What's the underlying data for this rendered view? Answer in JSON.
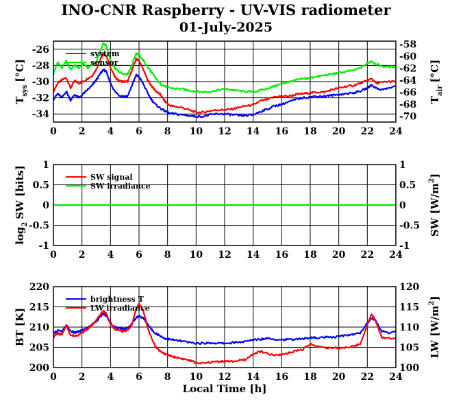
{
  "title": "INO-CNR Raspberry - UV-VIS radiometer",
  "subtitle": "01-July-2025",
  "chart_data": [
    {
      "type": "line",
      "panel": "temperatures",
      "xlim": [
        0,
        24
      ],
      "xticks": [
        "0",
        "2",
        "4",
        "6",
        "8",
        "10",
        "12",
        "14",
        "16",
        "18",
        "20",
        "22",
        "24"
      ],
      "ylabel_left_main": "T",
      "ylabel_left_sub": "sys",
      "ylabel_left_unit": "[°C]",
      "ylim_left": [
        -35,
        -25
      ],
      "yticks_left": [
        "-26",
        "-28",
        "-30",
        "-32",
        "-34"
      ],
      "ylabel_right_main": "T",
      "ylabel_right_sub": "air",
      "ylabel_right_unit": "[°C]",
      "ylim_right": [
        -71,
        -57.5
      ],
      "yticks_right": [
        "-58",
        "-60",
        "-62",
        "-64",
        "-66",
        "-68",
        "-70"
      ],
      "grid": true,
      "legend_position": "top-left",
      "series": [
        {
          "name": "system",
          "color": "#ff0000",
          "axis": "left",
          "x": [
            0,
            0.3,
            0.6,
            0.9,
            1.2,
            1.5,
            1.8,
            2.1,
            2.4,
            2.7,
            3.0,
            3.3,
            3.5,
            3.7,
            4.0,
            4.3,
            4.6,
            4.9,
            5.2,
            5.5,
            5.8,
            6.0,
            6.3,
            6.6,
            6.9,
            7.2,
            7.5,
            7.8,
            8.1,
            8.5,
            9,
            9.5,
            10,
            10.5,
            11,
            11.5,
            12,
            12.5,
            13,
            13.5,
            14,
            14.5,
            15,
            15.5,
            16,
            16.5,
            17,
            17.5,
            18,
            18.5,
            19,
            19.5,
            20,
            20.5,
            21,
            21.5,
            22,
            22.3,
            22.6,
            23,
            23.5,
            24
          ],
          "y": [
            -31.2,
            -30.2,
            -29.8,
            -29.5,
            -30.8,
            -29.9,
            -30.2,
            -30.0,
            -29.6,
            -29.3,
            -28.5,
            -27.2,
            -26.6,
            -26.8,
            -28.2,
            -29.4,
            -29.9,
            -30.0,
            -30.0,
            -28.6,
            -27.2,
            -27.4,
            -28.5,
            -29.8,
            -30.6,
            -31.2,
            -31.6,
            -32.4,
            -32.9,
            -33.1,
            -33.2,
            -33.5,
            -33.8,
            -33.8,
            -33.6,
            -33.5,
            -33.5,
            -33.4,
            -33.2,
            -33.0,
            -32.9,
            -32.4,
            -32.2,
            -31.9,
            -31.8,
            -31.8,
            -31.6,
            -31.5,
            -31.4,
            -31.3,
            -31.3,
            -31.0,
            -30.8,
            -30.6,
            -30.5,
            -30.2,
            -29.9,
            -29.6,
            -30.2,
            -30.1,
            -30.0,
            -30.0
          ]
        },
        {
          "name": "sensor",
          "color": "#00ee00",
          "axis": "right",
          "x": [
            0,
            0.3,
            0.6,
            0.9,
            1.2,
            1.5,
            1.8,
            2.1,
            2.4,
            2.7,
            3.0,
            3.3,
            3.5,
            3.7,
            4.0,
            4.3,
            4.6,
            4.9,
            5.2,
            5.5,
            5.8,
            6.0,
            6.3,
            6.6,
            6.9,
            7.2,
            7.5,
            7.8,
            8.1,
            8.5,
            9,
            9.5,
            10,
            10.5,
            11,
            11.5,
            12,
            12.5,
            13,
            13.5,
            14,
            14.5,
            15,
            15.5,
            16,
            16.5,
            17,
            17.5,
            18,
            18.5,
            19,
            19.5,
            20,
            20.5,
            21,
            21.5,
            22,
            22.3,
            22.6,
            23,
            23.5,
            24
          ],
          "y": [
            -63.0,
            -61.0,
            -62.0,
            -60.8,
            -62.2,
            -61.5,
            -62.0,
            -61.2,
            -62.0,
            -61.5,
            -61.0,
            -59.0,
            -57.9,
            -58.2,
            -60.8,
            -62.0,
            -62.6,
            -62.9,
            -63.0,
            -61.5,
            -59.5,
            -59.8,
            -60.7,
            -61.8,
            -62.8,
            -63.8,
            -64.6,
            -65.0,
            -65.3,
            -65.4,
            -65.5,
            -65.7,
            -65.9,
            -66.0,
            -65.9,
            -65.7,
            -65.5,
            -65.6,
            -65.8,
            -65.9,
            -66.0,
            -65.7,
            -65.4,
            -65.0,
            -64.6,
            -64.3,
            -64.0,
            -63.8,
            -63.6,
            -63.4,
            -63.2,
            -63.0,
            -62.8,
            -62.6,
            -62.4,
            -62.0,
            -61.2,
            -60.8,
            -61.3,
            -61.7,
            -61.8,
            -61.8
          ]
        },
        {
          "name": "",
          "color": "#0000ff",
          "axis": "left",
          "x": [
            0,
            0.3,
            0.6,
            0.9,
            1.2,
            1.5,
            1.8,
            2.1,
            2.4,
            2.7,
            3.0,
            3.3,
            3.5,
            3.7,
            4.0,
            4.3,
            4.6,
            4.9,
            5.2,
            5.5,
            5.8,
            6.0,
            6.3,
            6.6,
            6.9,
            7.2,
            7.5,
            7.8,
            8.1,
            8.5,
            9,
            9.5,
            10,
            10.5,
            11,
            11.5,
            12,
            12.5,
            13,
            13.5,
            14,
            14.5,
            15,
            15.5,
            16,
            16.5,
            17,
            17.5,
            18,
            18.5,
            19,
            19.5,
            20,
            20.5,
            21,
            21.5,
            22,
            22.3,
            22.6,
            23,
            23.5,
            24
          ],
          "y": [
            -32.2,
            -31.5,
            -32.0,
            -31.2,
            -32.3,
            -31.6,
            -32.0,
            -31.5,
            -31.0,
            -30.5,
            -29.8,
            -29.0,
            -28.5,
            -28.8,
            -30.2,
            -31.2,
            -31.7,
            -31.8,
            -31.8,
            -30.5,
            -29.2,
            -29.4,
            -30.3,
            -31.4,
            -32.3,
            -32.9,
            -33.3,
            -33.6,
            -33.9,
            -34.0,
            -34.1,
            -34.2,
            -34.3,
            -34.3,
            -34.1,
            -34.0,
            -34.0,
            -34.1,
            -34.2,
            -34.2,
            -34.1,
            -33.7,
            -33.4,
            -33.0,
            -32.8,
            -32.5,
            -32.2,
            -32.0,
            -31.9,
            -31.8,
            -31.8,
            -31.7,
            -31.6,
            -31.5,
            -31.4,
            -31.2,
            -30.8,
            -30.4,
            -30.8,
            -31.0,
            -30.8,
            -30.6
          ]
        }
      ]
    },
    {
      "type": "line",
      "panel": "shortwave",
      "xlim": [
        0,
        24
      ],
      "xticks": [
        "0",
        "2",
        "4",
        "6",
        "8",
        "10",
        "12",
        "14",
        "16",
        "18",
        "20",
        "22",
        "24"
      ],
      "ylabel_left_main": "log",
      "ylabel_left_sub": "2",
      "ylabel_left_unit": "SW [bits]",
      "ylim_left": [
        -1,
        1
      ],
      "yticks_left": [
        "1",
        "0.5",
        "0",
        "-0.5",
        "-1"
      ],
      "ylabel_right_main": "SW [W/m",
      "ylabel_right_sup": "2",
      "ylabel_right_unit": "]",
      "ylim_right": [
        -1,
        1
      ],
      "yticks_right": [
        "1",
        "0.5",
        "0",
        "-0.5",
        "-1"
      ],
      "grid": true,
      "legend_position": "top-left",
      "series": [
        {
          "name": "SW signal",
          "color": "#ff0000",
          "axis": "left",
          "x": [
            0,
            24
          ],
          "y": [
            0,
            0
          ]
        },
        {
          "name": "SW irradiance",
          "color": "#00ee00",
          "axis": "right",
          "x": [
            0,
            24
          ],
          "y": [
            0,
            0
          ]
        }
      ]
    },
    {
      "type": "line",
      "panel": "longwave",
      "xlim": [
        0,
        24
      ],
      "xticks": [
        "0",
        "2",
        "4",
        "6",
        "8",
        "10",
        "12",
        "14",
        "16",
        "18",
        "20",
        "22",
        "24"
      ],
      "xlabel": "Local Time [h]",
      "ylabel_left": "BT [K]",
      "ylim_left": [
        200,
        220
      ],
      "yticks_left": [
        "220",
        "215",
        "210",
        "205",
        "200"
      ],
      "ylabel_right_main": "LW [W/m",
      "ylabel_right_sup": "2",
      "ylabel_right_unit": "]",
      "ylim_right": [
        100,
        120
      ],
      "yticks_right": [
        "120",
        "115",
        "110",
        "105",
        "100"
      ],
      "grid": true,
      "legend_position": "top-left",
      "series": [
        {
          "name": "brightness T",
          "color": "#0000ff",
          "axis": "left",
          "x": [
            0,
            0.3,
            0.6,
            0.9,
            1.2,
            1.5,
            1.8,
            2.1,
            2.4,
            2.7,
            3.0,
            3.3,
            3.5,
            3.7,
            4.0,
            4.3,
            4.6,
            4.9,
            5.2,
            5.5,
            5.8,
            6.0,
            6.3,
            6.6,
            6.9,
            7.2,
            7.5,
            7.8,
            8.1,
            8.5,
            9,
            9.5,
            10,
            10.5,
            11,
            11.5,
            12,
            12.5,
            13,
            13.5,
            14,
            14.5,
            15,
            15.5,
            16,
            16.5,
            17,
            17.5,
            18,
            18.5,
            19,
            19.5,
            20,
            20.5,
            21,
            21.5,
            22,
            22.3,
            22.6,
            23,
            23.5,
            24
          ],
          "y": [
            208.5,
            209.2,
            208.8,
            210.5,
            209.0,
            208.6,
            208.9,
            209.4,
            209.8,
            210.6,
            211.5,
            212.6,
            213.2,
            212.8,
            211.0,
            210.0,
            209.8,
            209.6,
            209.7,
            210.8,
            212.4,
            212.7,
            212.2,
            210.8,
            209.3,
            208.4,
            207.8,
            207.2,
            207.0,
            206.8,
            206.5,
            206.2,
            206.0,
            206.0,
            206.1,
            206.0,
            206.0,
            206.1,
            206.3,
            206.4,
            206.9,
            207.0,
            207.3,
            207.0,
            206.9,
            206.9,
            207.0,
            207.1,
            207.4,
            207.3,
            207.5,
            207.4,
            207.7,
            208.0,
            208.2,
            208.5,
            211.0,
            212.2,
            211.5,
            209.0,
            208.6,
            208.8
          ]
        },
        {
          "name": "LW irradiance",
          "color": "#ff0000",
          "axis": "right",
          "x": [
            0,
            0.3,
            0.6,
            0.9,
            1.2,
            1.5,
            1.8,
            2.1,
            2.4,
            2.7,
            3.0,
            3.3,
            3.5,
            3.7,
            4.0,
            4.3,
            4.6,
            4.9,
            5.2,
            5.5,
            5.8,
            6.0,
            6.3,
            6.6,
            6.9,
            7.2,
            7.5,
            7.8,
            8.1,
            8.5,
            9,
            9.5,
            10,
            10.5,
            11,
            11.5,
            12,
            12.5,
            13,
            13.5,
            14,
            14.5,
            15,
            15.5,
            16,
            16.5,
            17,
            17.5,
            18,
            18.5,
            19,
            19.5,
            20,
            20.5,
            21,
            21.5,
            22,
            22.3,
            22.6,
            23,
            23.5,
            24
          ],
          "y": [
            107.5,
            108.5,
            108.0,
            110.5,
            108.0,
            107.8,
            108.2,
            108.8,
            109.5,
            110.5,
            111.8,
            113.0,
            114.0,
            113.4,
            110.8,
            109.5,
            109.2,
            109.0,
            109.2,
            110.5,
            114.5,
            115.8,
            114.0,
            110.0,
            107.0,
            105.0,
            104.0,
            103.4,
            103.0,
            102.6,
            102.2,
            101.8,
            101.2,
            101.0,
            101.3,
            101.5,
            101.6,
            101.5,
            101.7,
            102.0,
            103.4,
            104.0,
            103.4,
            103.0,
            103.2,
            103.6,
            104.2,
            104.5,
            105.8,
            105.2,
            105.0,
            104.8,
            104.8,
            105.0,
            105.2,
            105.8,
            110.5,
            113.2,
            111.5,
            107.5,
            107.2,
            107.4
          ]
        }
      ]
    }
  ]
}
